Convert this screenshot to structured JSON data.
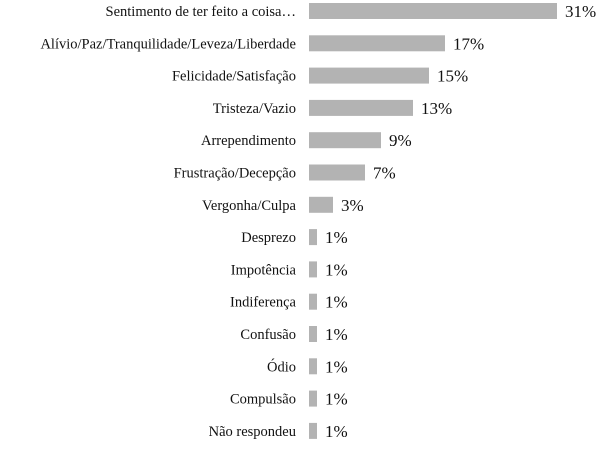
{
  "chart_data": {
    "type": "bar",
    "orientation": "horizontal",
    "title": "",
    "xlabel": "",
    "ylabel": "",
    "xlim": [
      0,
      31
    ],
    "grid": false,
    "bar_color": "#b3b3b3",
    "categories": [
      "Sentimento de ter feito a coisa…",
      "Alívio/Paz/Tranquilidade/Leveza/Liberdade",
      "Felicidade/Satisfação",
      "Tristeza/Vazio",
      "Arrependimento",
      "Frustração/Decepção",
      "Vergonha/Culpa",
      "Desprezo",
      "Impotência",
      "Indiferença",
      "Confusão",
      "Ódio",
      "Compulsão",
      "Não respondeu"
    ],
    "values": [
      31,
      17,
      15,
      13,
      9,
      7,
      3,
      1,
      1,
      1,
      1,
      1,
      1,
      1
    ],
    "value_labels": [
      "31%",
      "17%",
      "15%",
      "13%",
      "9%",
      "7%",
      "3%",
      "1%",
      "1%",
      "1%",
      "1%",
      "1%",
      "1%",
      "1%"
    ]
  }
}
